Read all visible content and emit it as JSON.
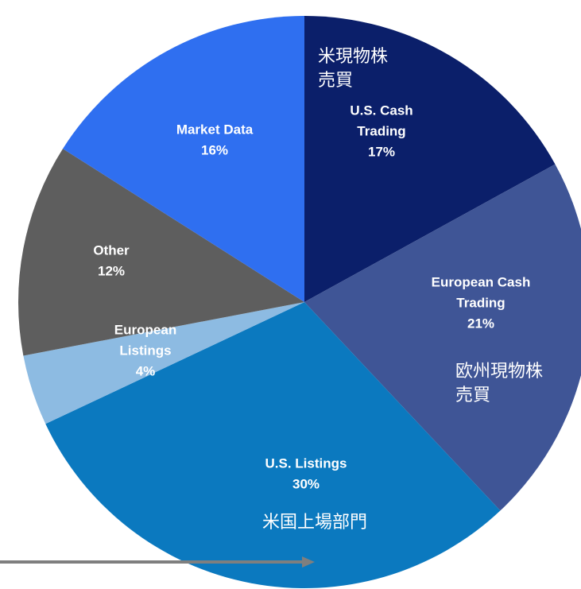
{
  "chart_data": {
    "type": "pie",
    "categories": [
      [
        "U.S. Cash",
        "Trading"
      ],
      [
        "European Cash",
        "Trading"
      ],
      [
        "U.S. Listings"
      ],
      [
        "European",
        "Listings"
      ],
      [
        "Other"
      ],
      [
        "Market Data"
      ]
    ],
    "values": [
      17,
      21,
      30,
      4,
      12,
      16
    ],
    "value_labels": [
      "17%",
      "21%",
      "30%",
      "4%",
      "12%",
      "16%"
    ],
    "colors": [
      "#0b1f6a",
      "#3f5596",
      "#0b79bf",
      "#8dbbe2",
      "#5e5e5e",
      "#2f6ff0"
    ],
    "annotations": [
      [
        "米現物株",
        "売買"
      ],
      [
        "欧州現物株",
        "売買"
      ],
      [
        "米国上場部門"
      ]
    ]
  }
}
